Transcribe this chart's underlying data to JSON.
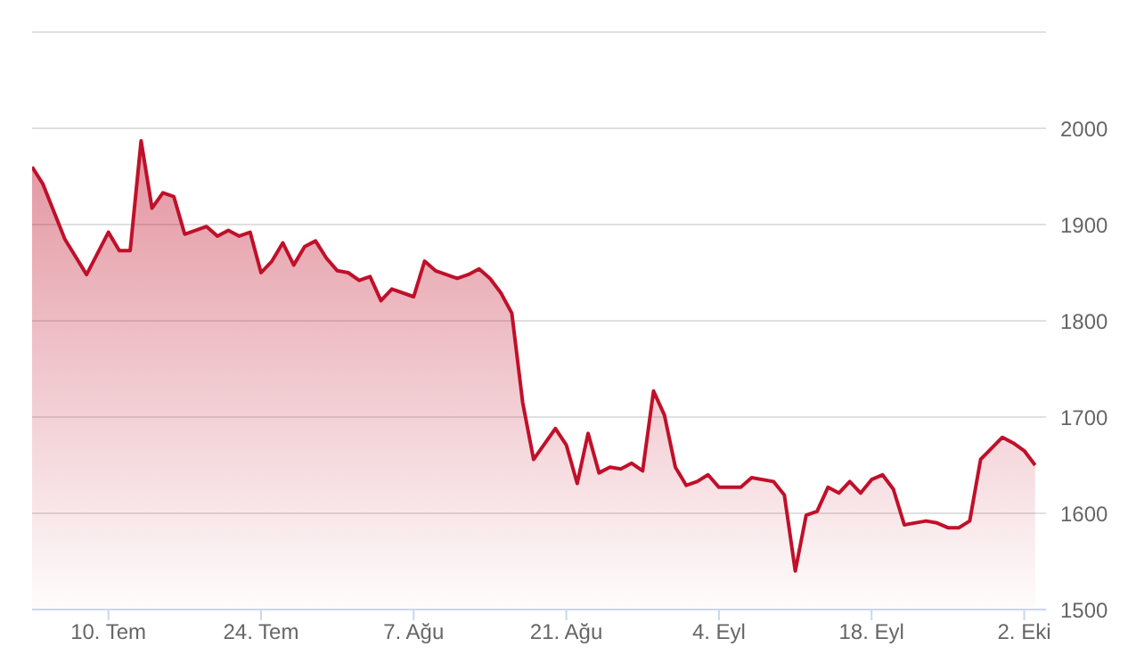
{
  "chart_data": {
    "type": "area",
    "x": [
      "--07-03",
      "--07-04",
      "--07-06",
      "--07-08",
      "--07-10",
      "--07-11",
      "--07-12",
      "--07-13",
      "--07-14",
      "--07-15",
      "--07-16",
      "--07-17",
      "--07-19",
      "--07-20",
      "--07-21",
      "--07-22",
      "--07-23",
      "--07-24",
      "--07-25",
      "--07-26",
      "--07-27",
      "--07-28",
      "--07-29",
      "--07-30",
      "--07-31",
      "--08-01",
      "--08-02",
      "--08-03",
      "--08-04",
      "--08-05",
      "--08-07",
      "--08-08",
      "--08-09",
      "--08-10",
      "--08-11",
      "--08-12",
      "--08-13",
      "--08-14",
      "--08-15",
      "--08-16",
      "--08-17",
      "--08-18",
      "--08-20",
      "--08-21",
      "--08-22",
      "--08-23",
      "--08-24",
      "--08-25",
      "--08-26",
      "--08-27",
      "--08-28",
      "--08-29",
      "--08-30",
      "--08-31",
      "--09-01",
      "--09-02",
      "--09-03",
      "--09-04",
      "--09-06",
      "--09-07",
      "--09-09",
      "--09-10",
      "--09-11",
      "--09-12",
      "--09-13",
      "--09-14",
      "--09-15",
      "--09-16",
      "--09-17",
      "--09-18",
      "--09-19",
      "--09-20",
      "--09-21",
      "--09-23",
      "--09-24",
      "--09-25",
      "--09-26",
      "--09-27",
      "--09-28",
      "--09-30",
      "--10-01",
      "--10-02",
      "--10-03"
    ],
    "series": [
      {
        "color": "#c0102a",
        "values": [
          1960,
          1942,
          1885,
          1848,
          1892,
          1873,
          1873,
          1987,
          1917,
          1933,
          1929,
          1890,
          1898,
          1888,
          1894,
          1888,
          1892,
          1850,
          1862,
          1881,
          1858,
          1877,
          1883,
          1865,
          1852,
          1850,
          1842,
          1846,
          1821,
          1833,
          1825,
          1862,
          1852,
          1848,
          1844,
          1848,
          1854,
          1844,
          1829,
          1808,
          1715,
          1656,
          1688,
          1671,
          1631,
          1683,
          1642,
          1648,
          1646,
          1652,
          1644,
          1727,
          1702,
          1648,
          1629,
          1633,
          1640,
          1627,
          1627,
          1637,
          1633,
          1619,
          1540,
          1598,
          1602,
          1627,
          1621,
          1633,
          1621,
          1635,
          1640,
          1625,
          1588,
          1592,
          1590,
          1585,
          1585,
          1592,
          1656,
          1679,
          1673,
          1665,
          1650
        ]
      }
    ],
    "xlim": [
      "--07-03",
      "--10-04"
    ],
    "xticks": [
      {
        "value": "--07-10",
        "label": "10. Tem"
      },
      {
        "value": "--07-24",
        "label": "24. Tem"
      },
      {
        "value": "--08-07",
        "label": "7. Ağu"
      },
      {
        "value": "--08-21",
        "label": "21. Ağu"
      },
      {
        "value": "--09-04",
        "label": "4. Eyl"
      },
      {
        "value": "--09-18",
        "label": "18. Eyl"
      },
      {
        "value": "--10-02",
        "label": "2. Eki"
      }
    ],
    "ylim": [
      1500,
      2100
    ],
    "yticks": [
      1500,
      1600,
      1700,
      1800,
      1900,
      2000,
      {
        "value": 2100,
        "label": null
      }
    ],
    "grid": "y",
    "marker": "none",
    "line_style": "solid"
  }
}
